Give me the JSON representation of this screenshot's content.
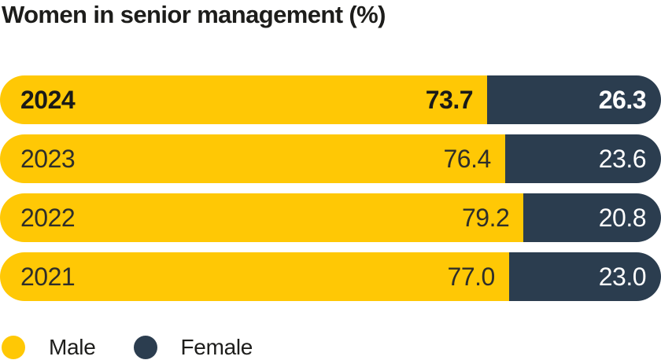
{
  "title": "Women in senior management (%)",
  "colors": {
    "male": "#FFC805",
    "female": "#2B3D4F",
    "title_text": "#1D1D1B",
    "label_on_male": "#2E2E2A",
    "label_on_female": "#FFFFFF",
    "background": "#FFFFFF"
  },
  "chart_data": {
    "type": "bar",
    "orientation": "horizontal",
    "stacked": true,
    "unit": "%",
    "title": "Women in senior management (%)",
    "categories": [
      "2024",
      "2023",
      "2022",
      "2021"
    ],
    "series": [
      {
        "name": "Male",
        "color": "#FFC805",
        "values": [
          73.7,
          76.4,
          79.2,
          77.0
        ]
      },
      {
        "name": "Female",
        "color": "#2B3D4F",
        "values": [
          26.3,
          23.6,
          20.8,
          23.0
        ]
      }
    ],
    "xlim": [
      0,
      100
    ],
    "grid": false,
    "legend_position": "bottom-left",
    "highlighted_category": "2024",
    "value_labels": "inside-end"
  },
  "rows": [
    {
      "year": "2024",
      "male_label": "73.7",
      "female_label": "26.3",
      "male_pct": 73.7,
      "female_pct": 26.3,
      "highlight": true
    },
    {
      "year": "2023",
      "male_label": "76.4",
      "female_label": "23.6",
      "male_pct": 76.4,
      "female_pct": 23.6,
      "highlight": false
    },
    {
      "year": "2022",
      "male_label": "79.2",
      "female_label": "20.8",
      "male_pct": 79.2,
      "female_pct": 20.8,
      "highlight": false
    },
    {
      "year": "2021",
      "male_label": "77.0",
      "female_label": "23.0",
      "male_pct": 77.0,
      "female_pct": 23.0,
      "highlight": false
    }
  ],
  "legend": {
    "items": [
      {
        "label": "Male",
        "color": "#FFC805"
      },
      {
        "label": "Female",
        "color": "#2B3D4F"
      }
    ]
  }
}
